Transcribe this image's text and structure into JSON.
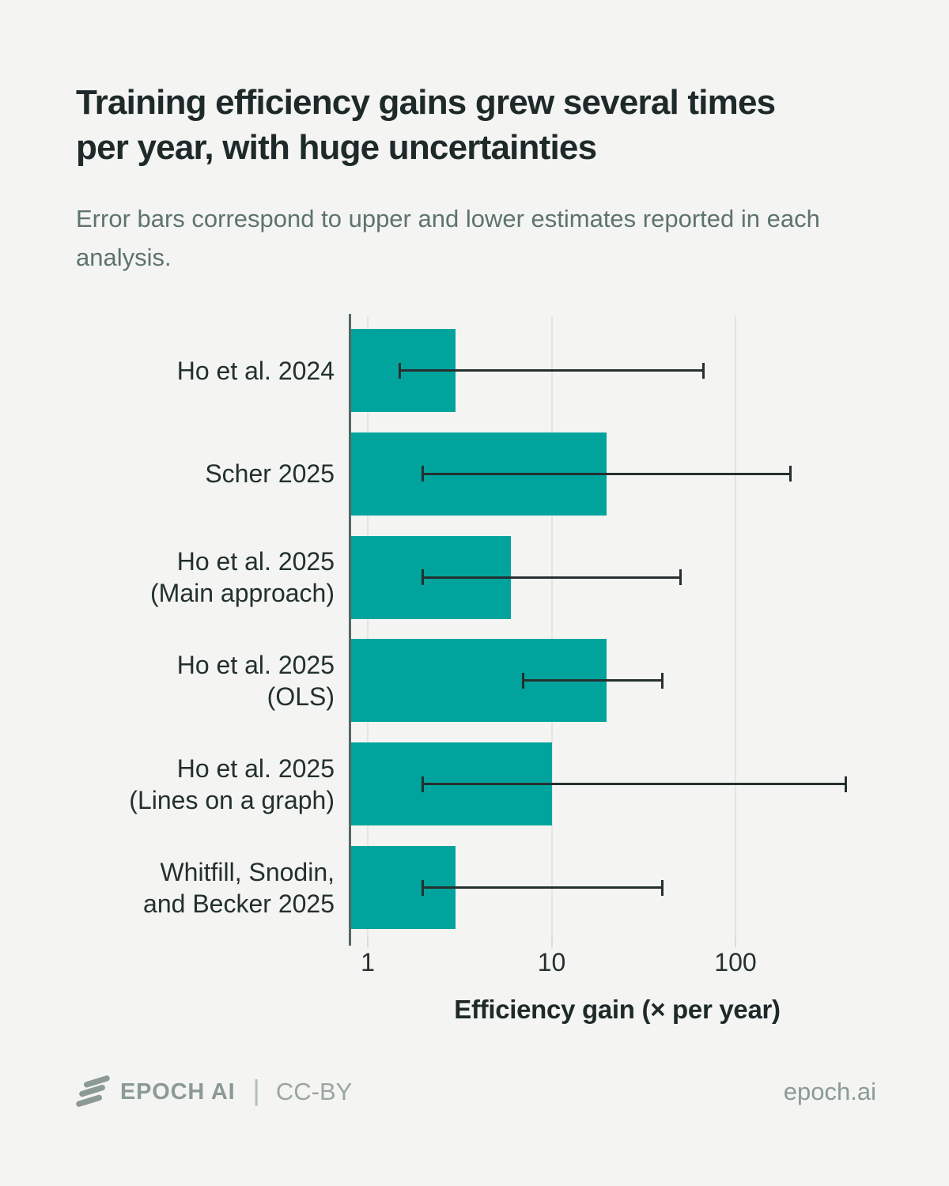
{
  "page": {
    "title": "Training efficiency gains grew several times per year, with huge uncertainties",
    "subtitle": "Error bars correspond to upper and lower estimates reported in each analysis.",
    "footer": {
      "brand": "EPOCH AI",
      "separator": "|",
      "license": "CC-BY",
      "site": "epoch.ai",
      "logo_icon": "epoch-slashes-icon"
    }
  },
  "colors": {
    "background": "#f4f4f2",
    "bar": "#00a49d",
    "error_bar": "#25302f",
    "axis_line": "#566663",
    "gridline": "#e4e4e1",
    "text_primary": "#1e2a29",
    "text_muted": "#5d7370",
    "footer_gray": "#8b9a96"
  },
  "chart_data": {
    "type": "bar",
    "orientation": "horizontal",
    "x_scale": "log",
    "grid": "vertical-only",
    "xlabel": "Efficiency gain (× per year)",
    "x_ticks": [
      1,
      10,
      100
    ],
    "x_tick_labels": [
      "1",
      "10",
      "100"
    ],
    "x_range_approx": [
      0.79,
      650
    ],
    "categories": [
      {
        "label": "Ho et al. 2024",
        "label_lines": [
          "Ho et al. 2024"
        ],
        "value": 3,
        "err_low": 1.5,
        "err_high": 67
      },
      {
        "label": "Scher 2025",
        "label_lines": [
          "Scher 2025"
        ],
        "value": 20,
        "err_low": 2,
        "err_high": 200
      },
      {
        "label": "Ho et al. 2025 (Main approach)",
        "label_lines": [
          "Ho et al. 2025",
          "(Main approach)"
        ],
        "value": 6,
        "err_low": 2,
        "err_high": 50
      },
      {
        "label": "Ho et al. 2025 (OLS)",
        "label_lines": [
          "Ho et al. 2025",
          "(OLS)"
        ],
        "value": 20,
        "err_low": 7,
        "err_high": 40
      },
      {
        "label": "Ho et al. 2025 (Lines on a graph)",
        "label_lines": [
          "Ho et al. 2025",
          "(Lines on a graph)"
        ],
        "value": 10,
        "err_low": 2,
        "err_high": 400
      },
      {
        "label": "Whitfill, Snodin, and Becker 2025",
        "label_lines": [
          "Whitfill, Snodin,",
          "and Becker 2025"
        ],
        "value": 3,
        "err_low": 2,
        "err_high": 40
      }
    ]
  }
}
